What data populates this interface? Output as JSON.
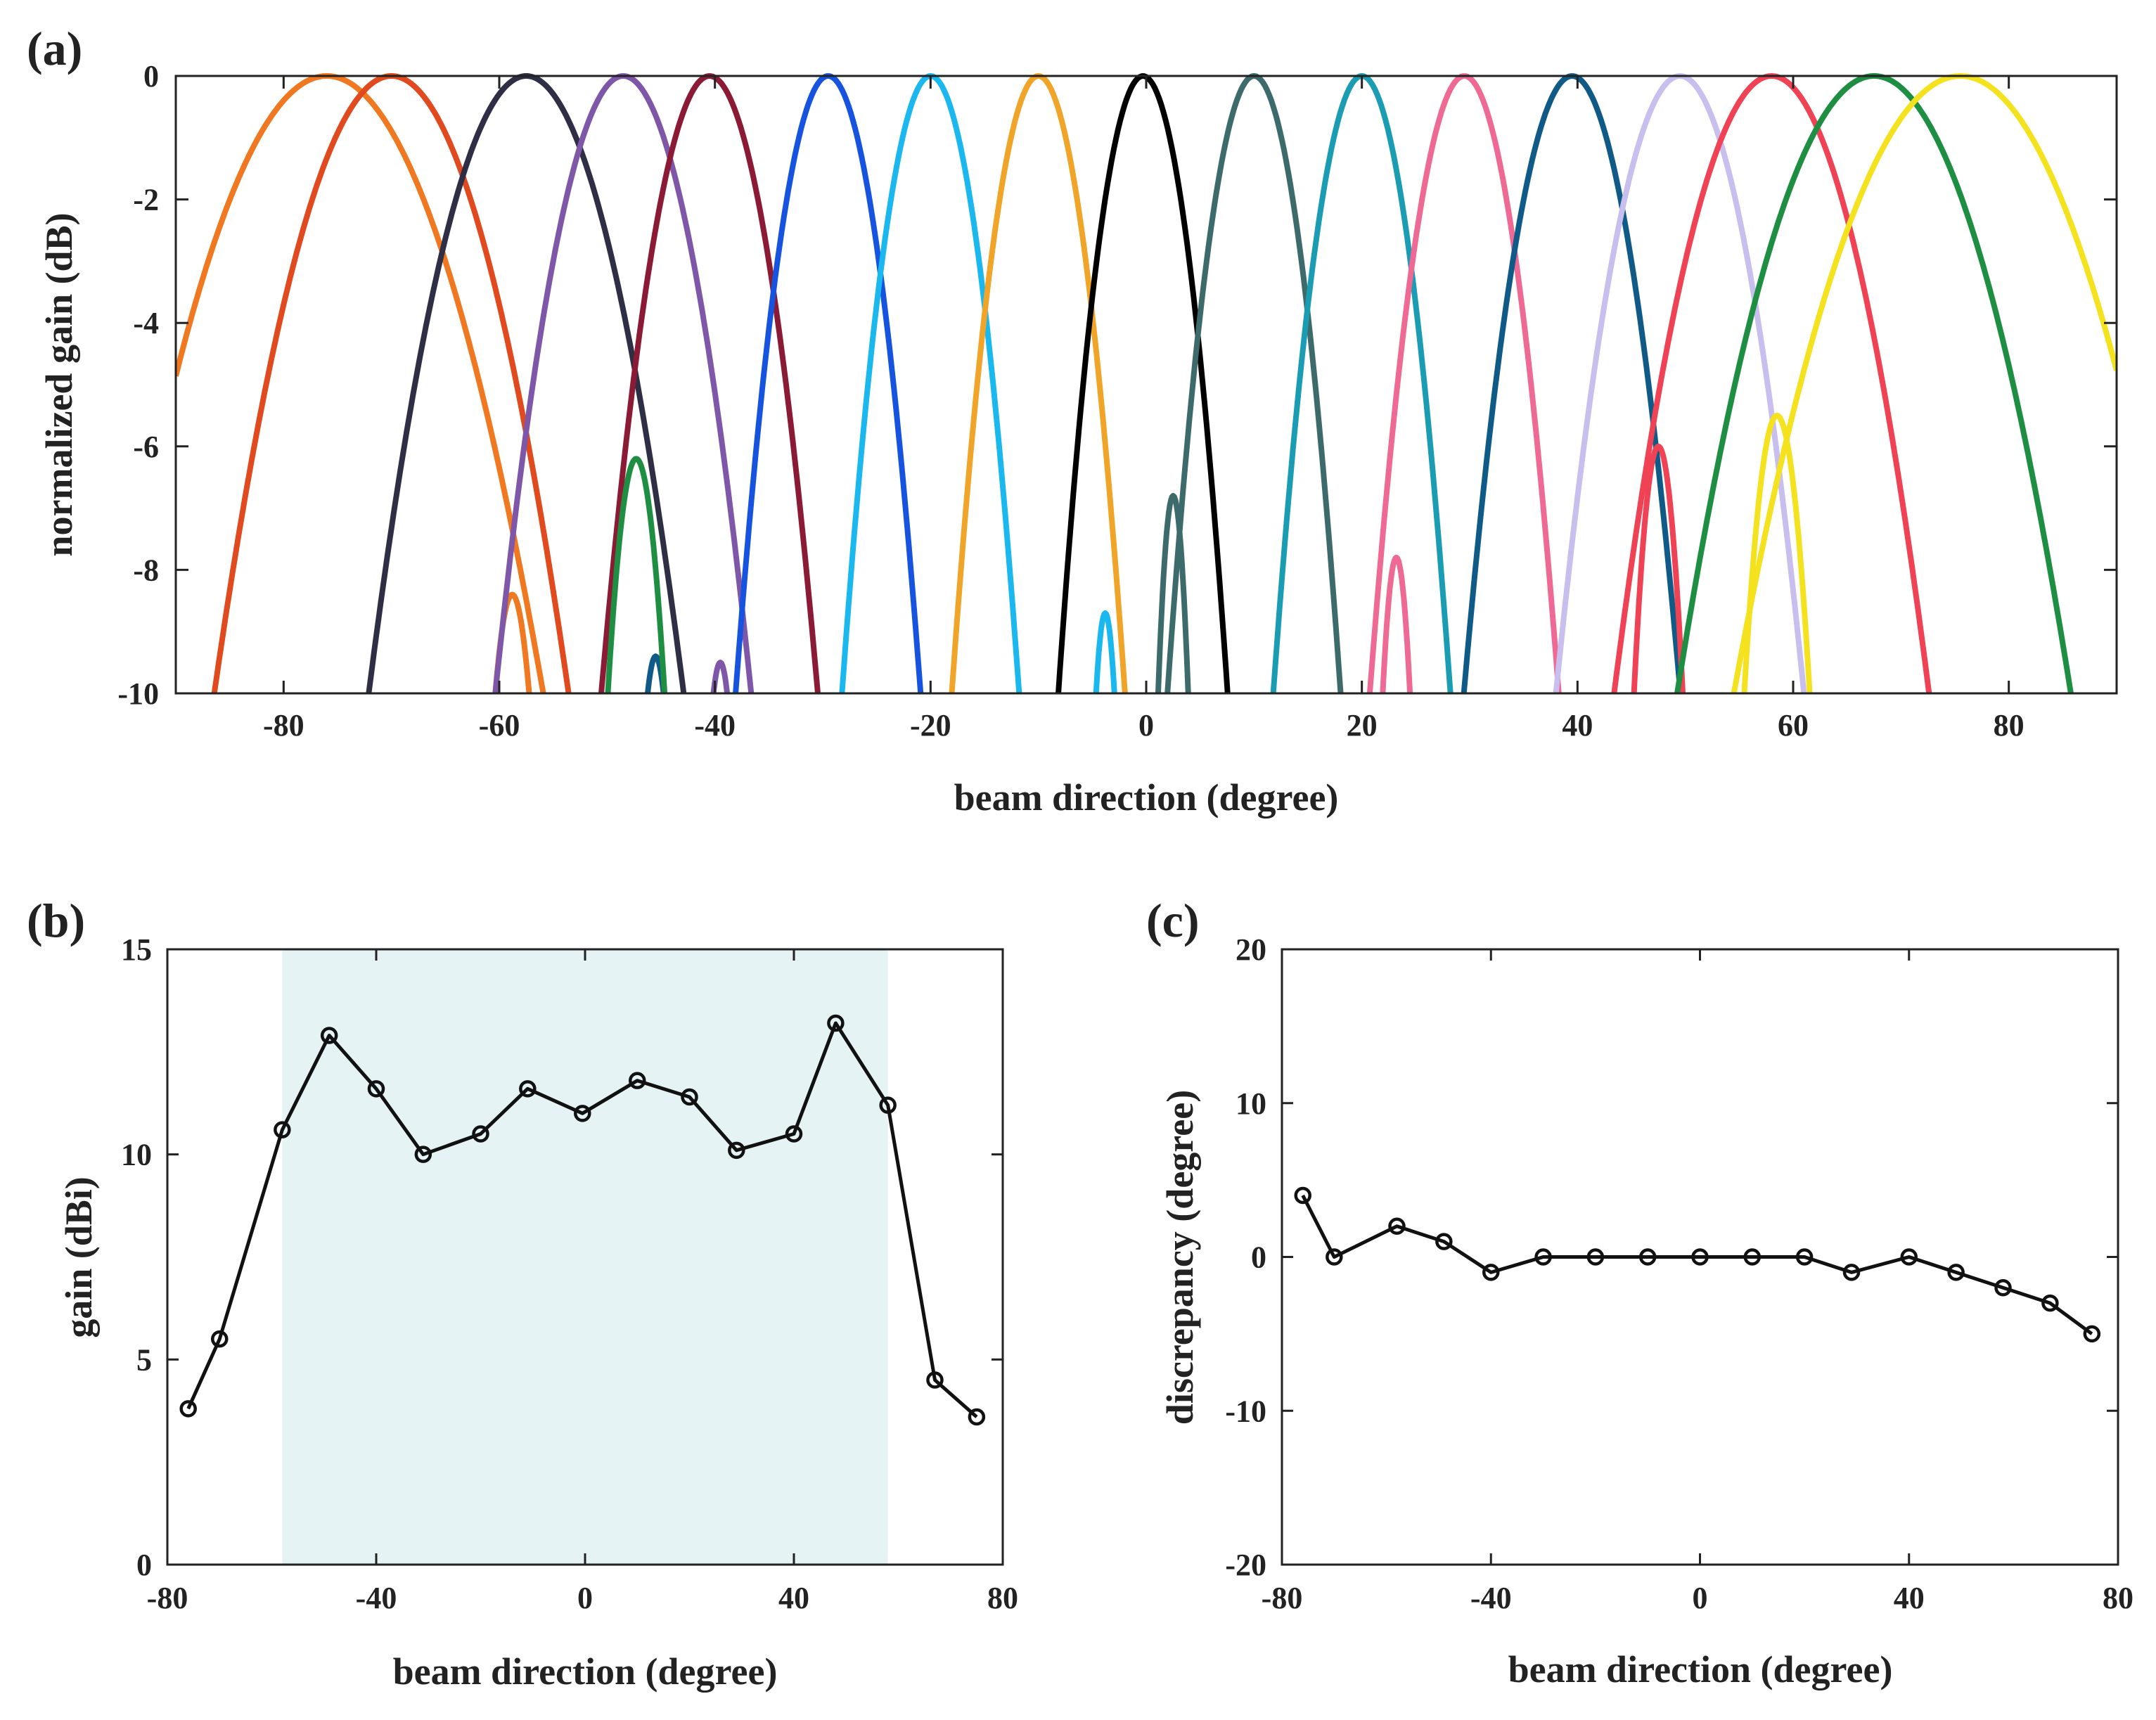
{
  "chart_data": [
    {
      "panel": "(a)",
      "type": "line",
      "xlabel": "beam direction (degree)",
      "ylabel": "normalized gain (dB)",
      "xlim": [
        -90,
        90
      ],
      "ylim": [
        -10,
        0
      ],
      "xticks": [
        -80,
        -60,
        -40,
        -20,
        0,
        20,
        40,
        60,
        80
      ],
      "yticks": [
        0,
        -2,
        -4,
        -6,
        -8,
        -10
      ],
      "grid": false,
      "series": [
        {
          "name": "beam -76",
          "color": "#F07820",
          "center": -76,
          "halfwidth": 11.0,
          "sidelobe": {
            "x": -58.8,
            "y": -8.4,
            "w": 1.8
          }
        },
        {
          "name": "beam -70",
          "color": "#E04A1E",
          "center": -70,
          "halfwidth": 9.0
        },
        {
          "name": "beam -58",
          "color": "#2E2E45",
          "center": -57.5,
          "halfwidth": 8.0
        },
        {
          "name": "beam -49",
          "color": "#7E57A8",
          "center": -48.5,
          "halfwidth": 6.5,
          "sidelobe": {
            "x": -39.5,
            "y": -9.5,
            "w": 0.9
          }
        },
        {
          "name": "beam -40",
          "color": "#8B1A35",
          "center": -40.5,
          "halfwidth": 5.5
        },
        {
          "name": "beam -30",
          "color": "#1654E0",
          "center": -29.5,
          "halfwidth": 4.7
        },
        {
          "name": "beam -20",
          "color": "#1AB8EE",
          "center": -20,
          "halfwidth": 4.5,
          "sidelobe": {
            "x": -3.8,
            "y": -8.7,
            "w": 1.0
          }
        },
        {
          "name": "beam -10",
          "color": "#F0A428",
          "center": -10,
          "halfwidth": 4.4
        },
        {
          "name": "beam 0",
          "color": "#000000",
          "center": -0.3,
          "halfwidth": 4.3
        },
        {
          "name": "beam 10",
          "color": "#3D6B6B",
          "center": 10,
          "halfwidth": 4.4,
          "sidelobe": {
            "x": 2.5,
            "y": -6.8,
            "w": 1.5
          }
        },
        {
          "name": "beam 20",
          "color": "#1A9DB3",
          "center": 20,
          "halfwidth": 4.5
        },
        {
          "name": "beam 29",
          "color": "#EE6A95",
          "center": 29.5,
          "halfwidth": 4.8,
          "sidelobe": {
            "x": 23.2,
            "y": -7.8,
            "w": 1.4
          }
        },
        {
          "name": "beam 40",
          "color": "#0F5A86",
          "center": 39.5,
          "halfwidth": 5.5,
          "sidelobe": {
            "x": -45.5,
            "y": -9.4,
            "w": 1.0
          }
        },
        {
          "name": "beam 49",
          "color": "#C9BFEF",
          "center": 49.5,
          "halfwidth": 6.3
        },
        {
          "name": "beam 58",
          "color": "#F04255",
          "center": 58,
          "halfwidth": 8.0,
          "sidelobe": {
            "x": 47.5,
            "y": -6.0,
            "w": 2.4
          }
        },
        {
          "name": "beam 67",
          "color": "#1E8F42",
          "center": 67.5,
          "halfwidth": 10.0,
          "sidelobe": {
            "x": -47.3,
            "y": -6.2,
            "w": 2.8
          }
        },
        {
          "name": "beam 75",
          "color": "#F5E21F",
          "center": 75.5,
          "halfwidth": 11.5,
          "sidelobe": {
            "x": 58.5,
            "y": -5.5,
            "w": 3.2
          }
        }
      ]
    },
    {
      "panel": "(b)",
      "type": "line",
      "xlabel": "beam direction (degree)",
      "ylabel": "gain (dBi)",
      "xlim": [
        -80,
        80
      ],
      "ylim": [
        0,
        15
      ],
      "xticks": [
        -80,
        -40,
        0,
        40,
        80
      ],
      "yticks": [
        0,
        5,
        10,
        15
      ],
      "shaded_region": [
        -58,
        58
      ],
      "shade_color": "#E6F3F5",
      "line_color": "#111111",
      "x": [
        -76,
        -70,
        -58,
        -49,
        -40,
        -31,
        -20,
        -11,
        -0.5,
        10,
        20,
        29,
        40,
        48,
        58,
        67,
        75
      ],
      "y": [
        3.8,
        5.5,
        10.6,
        12.9,
        11.6,
        10.0,
        10.5,
        11.6,
        11.0,
        11.8,
        11.4,
        10.1,
        10.5,
        13.2,
        11.2,
        4.5,
        3.6
      ]
    },
    {
      "panel": "(c)",
      "type": "line",
      "xlabel": "beam direction (degree)",
      "ylabel": "discrepancy (degree)",
      "xlim": [
        -80,
        80
      ],
      "ylim": [
        -20,
        20
      ],
      "xticks": [
        -80,
        -40,
        0,
        40,
        80
      ],
      "yticks": [
        20,
        10,
        0,
        -10,
        -20
      ],
      "line_color": "#111111",
      "x": [
        -76,
        -70,
        -58,
        -49,
        -40,
        -30,
        -20,
        -10,
        0,
        10,
        20,
        29,
        40,
        49,
        58,
        67,
        75
      ],
      "y": [
        4,
        0,
        2,
        1,
        -1,
        0,
        0,
        0,
        0,
        0,
        0,
        -1,
        0,
        -1,
        -2,
        -3,
        -5
      ]
    }
  ]
}
